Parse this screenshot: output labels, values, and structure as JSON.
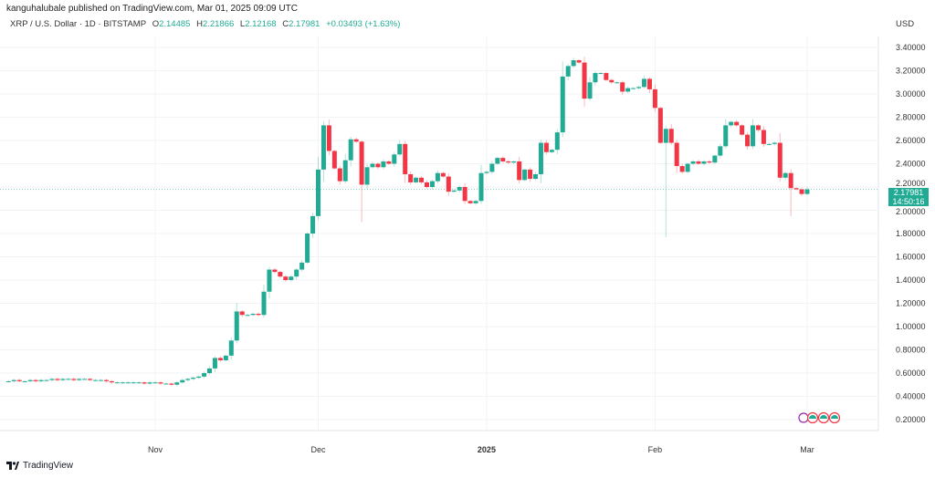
{
  "header": {
    "published": "kanguhalubale published on TradingView.com, Mar 01, 2025 09:09 UTC",
    "symbol": "XRP / U.S. Dollar · 1D · BITSTAMP",
    "open_label": "O",
    "open": "2.14485",
    "high_label": "H",
    "high": "2.21866",
    "low_label": "L",
    "low": "2.12168",
    "close_label": "C",
    "close": "2.17981",
    "change": "+0.03493 (+1.63%)",
    "currency": "USD"
  },
  "price_label": {
    "price": "2.17981",
    "countdown": "14:50:16"
  },
  "footer": {
    "brand": "TradingView"
  },
  "colors": {
    "up": "#22ab94",
    "down": "#f23645",
    "background": "#ffffff",
    "grid": "#f2f3f5"
  },
  "chart_data": {
    "type": "candlestick",
    "ylim": [
      0.2,
      3.4
    ],
    "y_ticks": [
      "3.40000",
      "3.20000",
      "3.00000",
      "2.80000",
      "2.60000",
      "2.40000",
      "2.20000",
      "2.00000",
      "1.80000",
      "1.60000",
      "1.40000",
      "1.20000",
      "1.00000",
      "0.80000",
      "0.60000",
      "0.40000",
      "0.20000"
    ],
    "x_ticks": [
      {
        "label": "Nov",
        "date": "2024-11-01"
      },
      {
        "label": "Dec",
        "date": "2024-12-01"
      },
      {
        "label": "2025",
        "date": "2025-01-01",
        "bold": true
      },
      {
        "label": "Feb",
        "date": "2025-02-01"
      },
      {
        "label": "Mar",
        "date": "2025-03-01"
      }
    ],
    "start_date": "2024-10-05",
    "first_open": 0.53,
    "closes": [
      0.53,
      0.54,
      0.53,
      0.53,
      0.54,
      0.53,
      0.54,
      0.54,
      0.55,
      0.54,
      0.55,
      0.55,
      0.54,
      0.55,
      0.55,
      0.54,
      0.54,
      0.54,
      0.53,
      0.52,
      0.52,
      0.52,
      0.52,
      0.52,
      0.52,
      0.51,
      0.52,
      0.52,
      0.51,
      0.51,
      0.5,
      0.52,
      0.54,
      0.55,
      0.56,
      0.57,
      0.6,
      0.64,
      0.73,
      0.71,
      0.75,
      0.88,
      1.13,
      1.1,
      1.1,
      1.11,
      1.1,
      1.3,
      1.49,
      1.47,
      1.43,
      1.4,
      1.43,
      1.49,
      1.55,
      1.8,
      1.95,
      2.35,
      2.73,
      2.51,
      2.36,
      2.25,
      2.43,
      2.61,
      2.59,
      2.22,
      2.37,
      2.4,
      2.37,
      2.42,
      2.4,
      2.48,
      2.57,
      2.31,
      2.24,
      2.28,
      2.24,
      2.2,
      2.25,
      2.32,
      2.29,
      2.16,
      2.17,
      2.2,
      2.08,
      2.06,
      2.08,
      2.32,
      2.33,
      2.4,
      2.45,
      2.42,
      2.41,
      2.42,
      2.26,
      2.35,
      2.27,
      2.31,
      2.58,
      2.5,
      2.52,
      2.67,
      3.15,
      3.24,
      3.29,
      3.27,
      2.96,
      3.1,
      3.18,
      3.18,
      3.12,
      3.1,
      3.1,
      3.02,
      3.05,
      3.05,
      3.06,
      3.13,
      3.04,
      2.88,
      2.58,
      2.7,
      2.58,
      2.38,
      2.33,
      2.4,
      2.42,
      2.4,
      2.42,
      2.41,
      2.47,
      2.55,
      2.73,
      2.76,
      2.73,
      2.65,
      2.55,
      2.73,
      2.69,
      2.57,
      2.57,
      2.58,
      2.28,
      2.32,
      2.19,
      2.18,
      2.14,
      2.18
    ],
    "notable_lows": {
      "2025-02-03": 1.77,
      "2024-12-09": 1.9,
      "2025-02-26": 1.95
    },
    "last_price": 2.17981
  }
}
